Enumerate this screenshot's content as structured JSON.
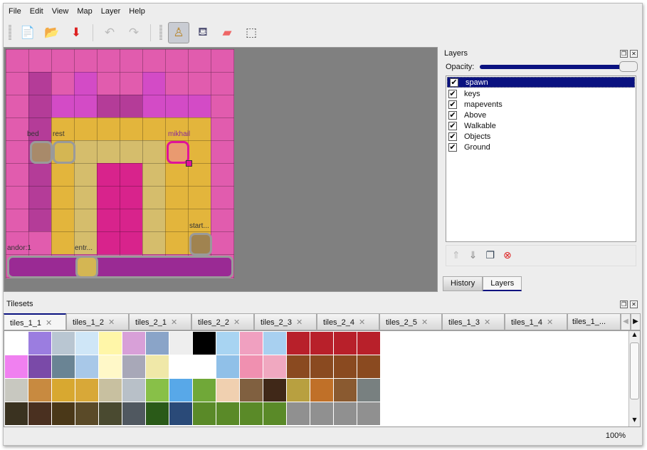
{
  "menu": [
    "File",
    "Edit",
    "View",
    "Map",
    "Layer",
    "Help"
  ],
  "toolbar": [
    {
      "name": "new-icon",
      "glyph": "📄"
    },
    {
      "name": "open-icon",
      "glyph": "📂"
    },
    {
      "name": "save-icon",
      "glyph": "⬇"
    },
    {
      "name": "undo-icon",
      "glyph": "↶"
    },
    {
      "name": "redo-icon",
      "glyph": "↷"
    },
    {
      "name": "stamp-brush-icon",
      "glyph": "♙",
      "active": true
    },
    {
      "name": "bucket-fill-icon",
      "glyph": "🪣"
    },
    {
      "name": "eraser-icon",
      "glyph": "▰"
    },
    {
      "name": "rect-select-icon",
      "glyph": "⬚"
    }
  ],
  "map": {
    "objects": [
      {
        "label": "bed"
      },
      {
        "label": "rest"
      },
      {
        "label": "mikhail"
      },
      {
        "label": "start..."
      },
      {
        "label": "andor:1"
      },
      {
        "label": "entr..."
      }
    ]
  },
  "layers_panel": {
    "title": "Layers",
    "opacity_label": "Opacity:",
    "opacity": 1.0,
    "layers": [
      {
        "name": "spawn",
        "visible": true,
        "selected": true
      },
      {
        "name": "keys",
        "visible": true
      },
      {
        "name": "mapevents",
        "visible": true
      },
      {
        "name": "Above",
        "visible": true
      },
      {
        "name": "Walkable",
        "visible": true
      },
      {
        "name": "Objects",
        "visible": true
      },
      {
        "name": "Ground",
        "visible": true
      }
    ],
    "buttons": [
      "raise-layer-icon",
      "lower-layer-icon",
      "duplicate-layer-icon",
      "remove-layer-icon"
    ],
    "tabs": [
      "History",
      "Layers"
    ],
    "active_tab": "Layers"
  },
  "tilesets": {
    "title": "Tilesets",
    "tabs": [
      "tiles_1_1",
      "tiles_1_2",
      "tiles_2_1",
      "tiles_2_2",
      "tiles_2_3",
      "tiles_2_4",
      "tiles_2_5",
      "tiles_1_3",
      "tiles_1_4",
      "tiles_1_..."
    ],
    "active_tab": "tiles_1_1"
  },
  "status": {
    "zoom": "100%"
  },
  "colors": {
    "accent": "#0a1280",
    "map_bg": "#808080"
  }
}
